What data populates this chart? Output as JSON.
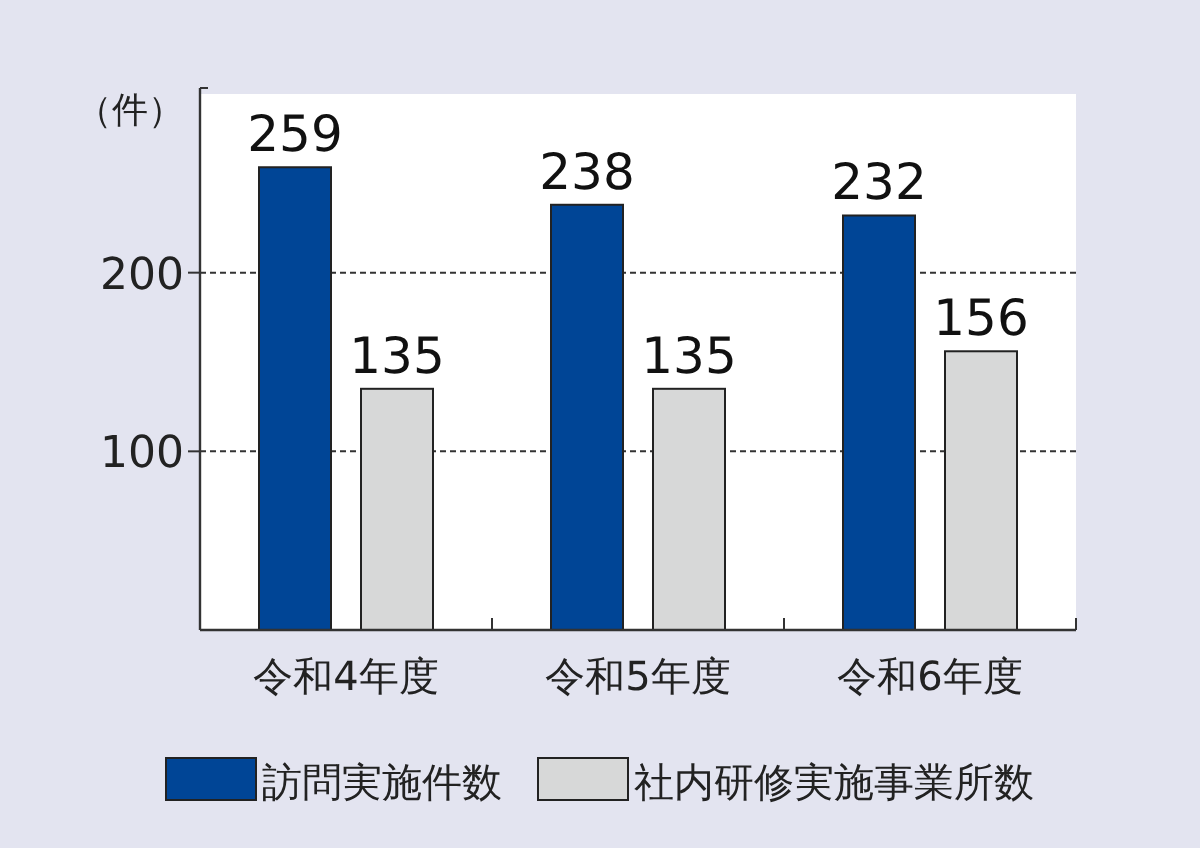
{
  "chart_data": {
    "type": "bar",
    "ylabel": "（件）",
    "categories": [
      "令和4年度",
      "令和5年度",
      "令和6年度"
    ],
    "series": [
      {
        "name": "訪問実施件数",
        "color": "#004596",
        "values": [
          259,
          238,
          232
        ]
      },
      {
        "name": "社内研修実施事業所数",
        "color": "#d7d8d8",
        "values": [
          135,
          135,
          156
        ]
      }
    ],
    "ylim": [
      0,
      300
    ],
    "yticks": [
      100,
      200
    ],
    "grid": "y",
    "data_labels": true,
    "legend": "bottom"
  }
}
